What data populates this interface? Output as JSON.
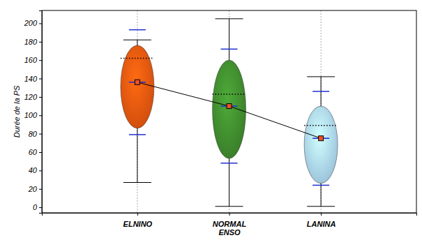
{
  "chart_data": {
    "type": "box",
    "y_label": "Durée de la PS",
    "categories": [
      "ELNINO",
      "NORMAL\nENSO",
      "LANINA"
    ],
    "colors": [
      "#e8560f",
      "#3f8a2e",
      "#a9d6f2"
    ],
    "min": [
      27,
      1,
      1
    ],
    "max": [
      182,
      205,
      142
    ],
    "q1": [
      86,
      53,
      26
    ],
    "q3": [
      176,
      160,
      110
    ],
    "median": [
      162,
      123,
      89
    ],
    "mean": [
      136,
      110,
      75
    ],
    "sd": [
      57,
      62,
      51
    ],
    "ylim": [
      -6,
      214
    ],
    "yticks": [
      0,
      20,
      40,
      60,
      80,
      100,
      120,
      140,
      160,
      180,
      200
    ],
    "grid": true
  }
}
